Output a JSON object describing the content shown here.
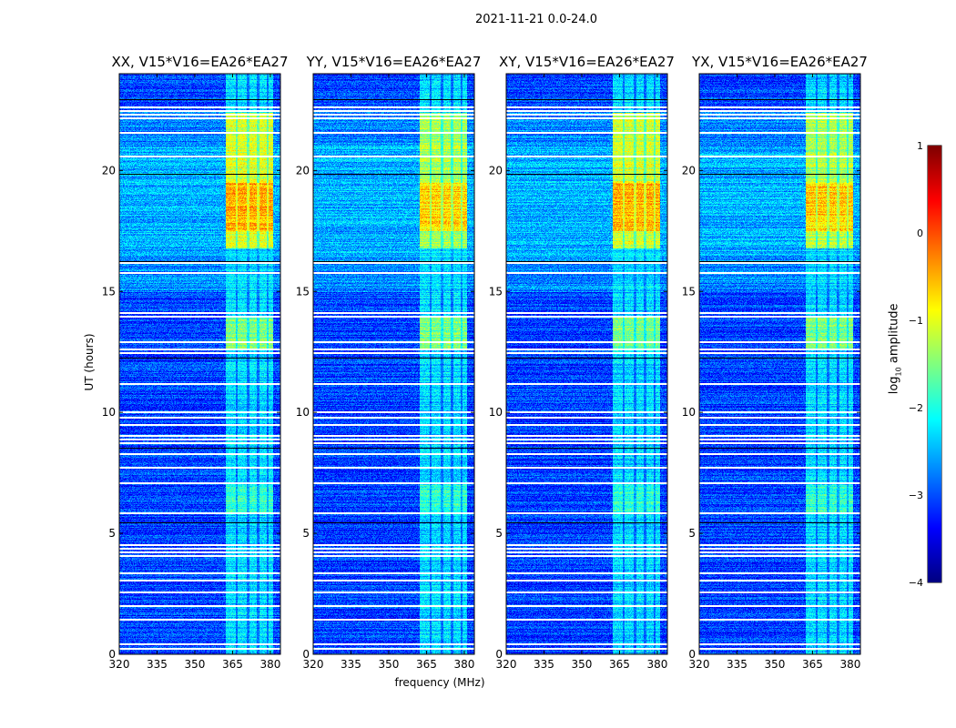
{
  "suptitle": "2021-11-21 0.0-24.0",
  "chart_data": {
    "type": "heatmap",
    "title": "2021-11-21 0.0-24.0",
    "xlabel": "frequency (MHz)",
    "ylabel": "UT (hours)",
    "xlim": [
      320,
      384
    ],
    "ylim": [
      0,
      24
    ],
    "xticks": [
      "320",
      "335",
      "350",
      "365",
      "380"
    ],
    "yticks": [
      "0",
      "5",
      "10",
      "15",
      "20"
    ],
    "panels": [
      {
        "title": "XX, V15*V16=EA26*EA27",
        "rfi_peak_log10": 0.1
      },
      {
        "title": "YY, V15*V16=EA26*EA27",
        "rfi_peak_log10": -0.4
      },
      {
        "title": "XY, V15*V16=EA26*EA27",
        "rfi_peak_log10": 0.0
      },
      {
        "title": "YX, V15*V16=EA26*EA27",
        "rfi_peak_log10": -0.3
      }
    ],
    "rfi_band_mhz": [
      362,
      381
    ],
    "rfi_strong_hours": [
      16.8,
      22.4
    ],
    "flagged_hours": [
      0.25,
      0.45,
      1.45,
      2.05,
      2.6,
      3.1,
      3.4,
      4.1,
      4.25,
      4.4,
      4.55,
      5.85,
      7.1,
      7.75,
      8.3,
      8.75,
      8.9,
      9.05,
      9.5,
      9.8,
      10.05,
      11.2,
      12.5,
      12.65,
      12.95,
      14.0,
      14.15,
      15.8,
      16.2,
      20.6,
      21.6,
      22.2,
      22.35,
      22.5,
      22.65
    ],
    "gap_hours": [
      5.45,
      8.55,
      12.25,
      16.25,
      19.85,
      22.95
    ],
    "colorbar": {
      "label": "log10 amplitude",
      "label_base": "log",
      "label_sub": "10",
      "label_rest": " amplitude",
      "colormap": "jet",
      "range": [
        -4,
        1
      ],
      "ticks": [
        "1",
        "0",
        "−1",
        "−2",
        "−3",
        "−4"
      ]
    }
  }
}
